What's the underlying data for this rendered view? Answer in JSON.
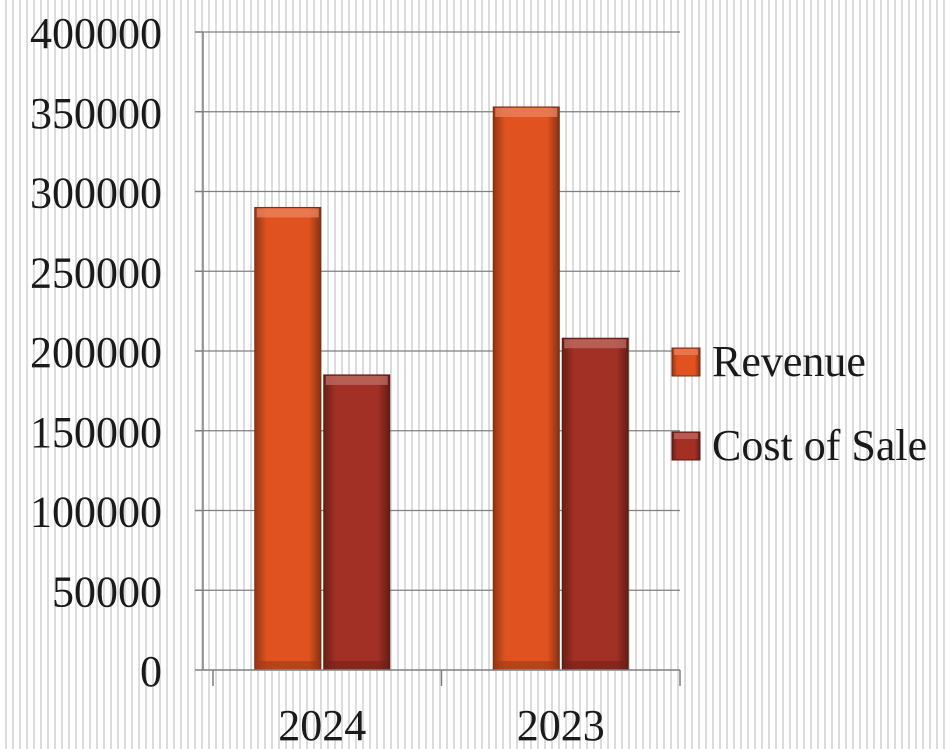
{
  "chart_data": {
    "type": "bar",
    "categories": [
      "2024",
      "2023"
    ],
    "series": [
      {
        "name": "Revenue",
        "values": [
          290000,
          353000
        ],
        "color": "#e0521f"
      },
      {
        "name": "Cost of Sale",
        "values": [
          185000,
          208000
        ],
        "color": "#a23024"
      }
    ],
    "ylim": [
      0,
      400000
    ],
    "yticks": [
      0,
      50000,
      100000,
      150000,
      200000,
      250000,
      300000,
      350000,
      400000
    ],
    "ytick_labels": [
      "0",
      "50000",
      "100000",
      "150000",
      "200000",
      "250000",
      "300000",
      "350000",
      "400000"
    ],
    "grid": true,
    "legend_position": "right",
    "bar_style": "3d-bevel"
  }
}
